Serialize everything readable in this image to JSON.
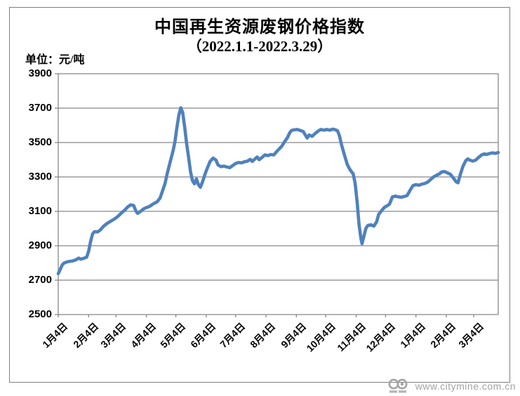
{
  "title": {
    "line1": "中国再生资源废钢价格指数",
    "line2": "（2022.1.1-2022.3.29）"
  },
  "unit_label": "单位：元/吨",
  "watermark": {
    "url": "www.citymine.com.cn",
    "logo_text": "CITY MINE"
  },
  "colors": {
    "line": "#4f81bd",
    "grid": "#878787",
    "axis": "#7f7f7f",
    "text": "#000000",
    "watermark": "#a3a3a3"
  },
  "chart_data": {
    "type": "line",
    "title": "中国再生资源废钢价格指数",
    "subtitle": "（2022.1.1-2022.3.29）",
    "unit": "元/吨",
    "ylim": [
      2500,
      3900
    ],
    "y_ticks": [
      3900,
      3700,
      3500,
      3300,
      3100,
      2900,
      2700,
      2500
    ],
    "x_tick_labels": [
      "1月4日",
      "2月4日",
      "3月4日",
      "4月4日",
      "5月4日",
      "6月4日",
      "7月4日",
      "8月4日",
      "9月4日",
      "10月4日",
      "11月4日",
      "12月4日",
      "1月4日",
      "2月4日",
      "3月4日"
    ],
    "x_tick_days": [
      0,
      31,
      59,
      90,
      120,
      151,
      181,
      212,
      243,
      273,
      304,
      334,
      365,
      396,
      424
    ],
    "x_total_days": 449,
    "grid": "horizontal",
    "legend": "none",
    "series": [
      {
        "points": [
          [
            0,
            2738
          ],
          [
            2,
            2762
          ],
          [
            4,
            2788
          ],
          [
            6,
            2800
          ],
          [
            9,
            2806
          ],
          [
            12,
            2810
          ],
          [
            15,
            2812
          ],
          [
            18,
            2818
          ],
          [
            21,
            2828
          ],
          [
            23,
            2822
          ],
          [
            26,
            2827
          ],
          [
            29,
            2834
          ],
          [
            31,
            2868
          ],
          [
            33,
            2925
          ],
          [
            35,
            2968
          ],
          [
            37,
            2982
          ],
          [
            40,
            2980
          ],
          [
            43,
            2992
          ],
          [
            46,
            3012
          ],
          [
            50,
            3030
          ],
          [
            54,
            3044
          ],
          [
            58,
            3058
          ],
          [
            61,
            3072
          ],
          [
            64,
            3088
          ],
          [
            68,
            3108
          ],
          [
            71,
            3126
          ],
          [
            74,
            3138
          ],
          [
            77,
            3134
          ],
          [
            79,
            3105
          ],
          [
            81,
            3088
          ],
          [
            84,
            3100
          ],
          [
            87,
            3114
          ],
          [
            90,
            3122
          ],
          [
            93,
            3128
          ],
          [
            96,
            3140
          ],
          [
            99,
            3150
          ],
          [
            101,
            3156
          ],
          [
            104,
            3178
          ],
          [
            106,
            3212
          ],
          [
            109,
            3262
          ],
          [
            111,
            3315
          ],
          [
            113,
            3360
          ],
          [
            115,
            3405
          ],
          [
            117,
            3448
          ],
          [
            119,
            3502
          ],
          [
            121,
            3585
          ],
          [
            123,
            3658
          ],
          [
            125,
            3702
          ],
          [
            127,
            3675
          ],
          [
            129,
            3592
          ],
          [
            131,
            3495
          ],
          [
            133,
            3415
          ],
          [
            135,
            3330
          ],
          [
            137,
            3278
          ],
          [
            139,
            3260
          ],
          [
            141,
            3288
          ],
          [
            143,
            3256
          ],
          [
            145,
            3240
          ],
          [
            147,
            3268
          ],
          [
            150,
            3320
          ],
          [
            152,
            3350
          ],
          [
            155,
            3390
          ],
          [
            158,
            3410
          ],
          [
            161,
            3398
          ],
          [
            163,
            3370
          ],
          [
            166,
            3360
          ],
          [
            169,
            3363
          ],
          [
            172,
            3358
          ],
          [
            175,
            3354
          ],
          [
            178,
            3366
          ],
          [
            181,
            3378
          ],
          [
            184,
            3384
          ],
          [
            187,
            3382
          ],
          [
            190,
            3388
          ],
          [
            193,
            3392
          ],
          [
            196,
            3402
          ],
          [
            198,
            3390
          ],
          [
            201,
            3406
          ],
          [
            203,
            3416
          ],
          [
            205,
            3400
          ],
          [
            208,
            3414
          ],
          [
            211,
            3428
          ],
          [
            214,
            3424
          ],
          [
            217,
            3430
          ],
          [
            220,
            3428
          ],
          [
            223,
            3448
          ],
          [
            225,
            3460
          ],
          [
            228,
            3478
          ],
          [
            231,
            3505
          ],
          [
            234,
            3530
          ],
          [
            236,
            3555
          ],
          [
            238,
            3570
          ],
          [
            241,
            3574
          ],
          [
            244,
            3576
          ],
          [
            247,
            3570
          ],
          [
            250,
            3564
          ],
          [
            252,
            3545
          ],
          [
            254,
            3526
          ],
          [
            256,
            3544
          ],
          [
            259,
            3536
          ],
          [
            262,
            3552
          ],
          [
            265,
            3566
          ],
          [
            268,
            3576
          ],
          [
            271,
            3572
          ],
          [
            274,
            3576
          ],
          [
            277,
            3572
          ],
          [
            280,
            3578
          ],
          [
            283,
            3574
          ],
          [
            285,
            3568
          ],
          [
            287,
            3538
          ],
          [
            289,
            3488
          ],
          [
            292,
            3428
          ],
          [
            295,
            3372
          ],
          [
            298,
            3340
          ],
          [
            301,
            3318
          ],
          [
            303,
            3262
          ],
          [
            305,
            3155
          ],
          [
            307,
            3020
          ],
          [
            309,
            2938
          ],
          [
            310,
            2912
          ],
          [
            312,
            2958
          ],
          [
            314,
            3002
          ],
          [
            316,
            3018
          ],
          [
            319,
            3022
          ],
          [
            322,
            3014
          ],
          [
            325,
            3040
          ],
          [
            327,
            3082
          ],
          [
            330,
            3104
          ],
          [
            333,
            3124
          ],
          [
            336,
            3134
          ],
          [
            338,
            3142
          ],
          [
            341,
            3184
          ],
          [
            344,
            3188
          ],
          [
            347,
            3184
          ],
          [
            350,
            3182
          ],
          [
            353,
            3186
          ],
          [
            356,
            3192
          ],
          [
            359,
            3222
          ],
          [
            362,
            3250
          ],
          [
            365,
            3255
          ],
          [
            368,
            3252
          ],
          [
            371,
            3258
          ],
          [
            374,
            3262
          ],
          [
            377,
            3270
          ],
          [
            380,
            3285
          ],
          [
            383,
            3300
          ],
          [
            386,
            3310
          ],
          [
            389,
            3318
          ],
          [
            391,
            3328
          ],
          [
            394,
            3332
          ],
          [
            397,
            3324
          ],
          [
            400,
            3316
          ],
          [
            403,
            3295
          ],
          [
            406,
            3272
          ],
          [
            408,
            3266
          ],
          [
            410,
            3308
          ],
          [
            413,
            3362
          ],
          [
            416,
            3396
          ],
          [
            418,
            3405
          ],
          [
            420,
            3398
          ],
          [
            423,
            3392
          ],
          [
            426,
            3398
          ],
          [
            429,
            3414
          ],
          [
            432,
            3428
          ],
          [
            435,
            3434
          ],
          [
            437,
            3430
          ],
          [
            440,
            3436
          ],
          [
            443,
            3440
          ],
          [
            446,
            3437
          ],
          [
            449,
            3442
          ]
        ]
      }
    ]
  }
}
